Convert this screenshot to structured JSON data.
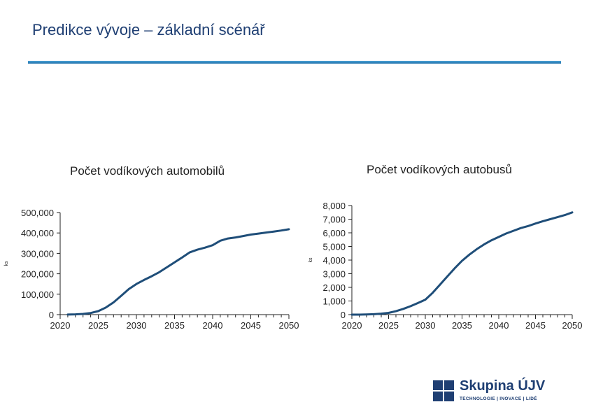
{
  "slide": {
    "title": "Predikce vývoje – základní scénář"
  },
  "logo": {
    "name": "Skupina ÚJV",
    "tagline": "TECHNOLOGIE | INOVACE | LIDÉ",
    "color": "#1f3f73"
  },
  "chart_data": [
    {
      "type": "line",
      "title": "Počet vodíkových automobilů",
      "ylabel": "ks",
      "xlabel": "",
      "xlim": [
        2020,
        2050
      ],
      "ylim": [
        0,
        500000
      ],
      "x_ticks": [
        "2020",
        "2025",
        "2030",
        "2035",
        "2040",
        "2045",
        "2050"
      ],
      "y_ticks": [
        "0",
        "100,000",
        "200,000",
        "300,000",
        "400,000",
        "500,000"
      ],
      "grid": false,
      "line_color": "#1f4e79",
      "series": [
        {
          "x": [
            2021,
            2022,
            2023,
            2024,
            2025,
            2026,
            2027,
            2028,
            2029,
            2030,
            2031,
            2032,
            2033,
            2034,
            2035,
            2036,
            2037,
            2038,
            2039,
            2040,
            2041,
            2042,
            2043,
            2044,
            2045,
            2046,
            2047,
            2048,
            2049,
            2050
          ],
          "values": [
            500,
            1500,
            3500,
            8000,
            17000,
            35000,
            60000,
            92000,
            125000,
            150000,
            170000,
            188000,
            208000,
            232000,
            256000,
            280000,
            305000,
            318000,
            328000,
            340000,
            362000,
            373000,
            378000,
            385000,
            392000,
            397000,
            402000,
            407000,
            412000,
            418000
          ]
        }
      ]
    },
    {
      "type": "line",
      "title": "Počet vodíkových autobusů",
      "ylabel": "ks",
      "xlabel": "",
      "xlim": [
        2020,
        2050
      ],
      "ylim": [
        0,
        8000
      ],
      "x_ticks": [
        "2020",
        "2025",
        "2030",
        "2035",
        "2040",
        "2045",
        "2050"
      ],
      "y_ticks": [
        "0",
        "1,000",
        "2,000",
        "3,000",
        "4,000",
        "5,000",
        "6,000",
        "7,000",
        "8,000"
      ],
      "grid": false,
      "line_color": "#1f4e79",
      "series": [
        {
          "x": [
            2020,
            2021,
            2022,
            2023,
            2024,
            2025,
            2026,
            2027,
            2028,
            2029,
            2030,
            2031,
            2032,
            2033,
            2034,
            2035,
            2036,
            2037,
            2038,
            2039,
            2040,
            2041,
            2042,
            2043,
            2044,
            2045,
            2046,
            2047,
            2048,
            2049,
            2050
          ],
          "values": [
            0,
            0,
            10,
            30,
            70,
            130,
            250,
            420,
            620,
            850,
            1100,
            1600,
            2200,
            2800,
            3400,
            3950,
            4400,
            4800,
            5150,
            5450,
            5700,
            5950,
            6150,
            6350,
            6500,
            6680,
            6850,
            7000,
            7150,
            7300,
            7500
          ]
        }
      ]
    }
  ]
}
